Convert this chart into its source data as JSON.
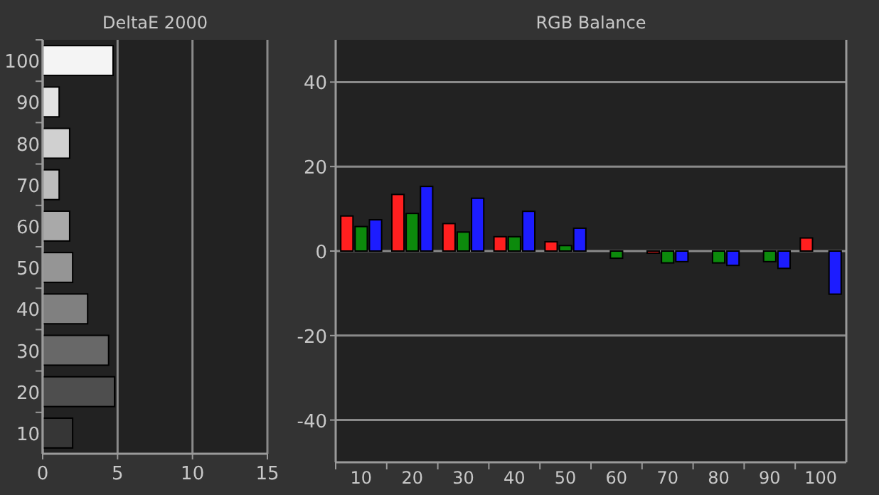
{
  "chart_data": [
    {
      "type": "bar",
      "title": "DeltaE 2000",
      "orientation": "horizontal",
      "categories": [
        "100",
        "90",
        "80",
        "70",
        "60",
        "50",
        "40",
        "30",
        "20",
        "10"
      ],
      "values": [
        4.7,
        1.1,
        1.8,
        1.1,
        1.8,
        2.0,
        3.0,
        4.4,
        4.8,
        2.0
      ],
      "colors": [
        "#f4f4f4",
        "#e2e2e2",
        "#d0d0d0",
        "#bdbdbd",
        "#a9a9a9",
        "#959595",
        "#808080",
        "#686868",
        "#4e4e4e",
        "#363636"
      ],
      "xlim": [
        0,
        15
      ],
      "xticks": [
        0,
        5,
        10,
        15
      ],
      "grid": "x"
    },
    {
      "type": "bar",
      "title": "RGB Balance",
      "categories": [
        "10",
        "20",
        "30",
        "40",
        "50",
        "60",
        "70",
        "80",
        "90",
        "100"
      ],
      "series": [
        {
          "color": "#ff1f1f",
          "values": [
            8.3,
            13.4,
            6.5,
            3.4,
            2.2,
            null,
            -0.5,
            null,
            null,
            3.1
          ]
        },
        {
          "color": "#0c8a0c",
          "values": [
            5.8,
            8.9,
            4.5,
            3.4,
            1.3,
            -1.7,
            -2.8,
            -2.8,
            -2.5,
            0
          ]
        },
        {
          "color": "#1c1cff",
          "values": [
            7.4,
            15.3,
            12.5,
            9.4,
            5.4,
            0,
            -2.5,
            -3.4,
            -4.1,
            -10.2
          ]
        }
      ],
      "ylim": [
        -50,
        50
      ],
      "yticks": [
        -40,
        -20,
        0,
        20,
        40
      ],
      "grid": "y"
    }
  ]
}
